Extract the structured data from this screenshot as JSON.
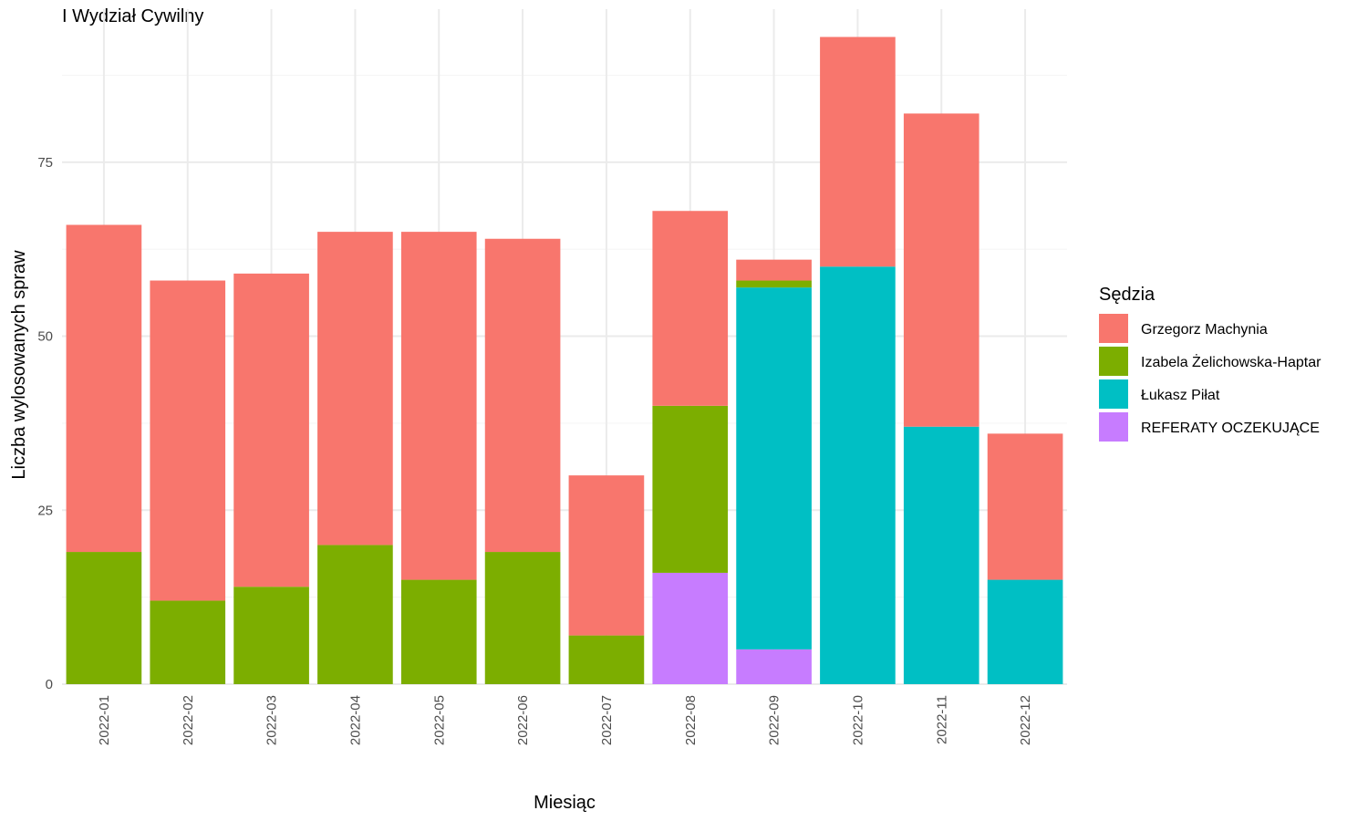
{
  "chart_data": {
    "type": "bar",
    "stacked": true,
    "title": "I Wydział Cywilny",
    "xlabel": "Miesiąc",
    "ylabel": "Liczba wylosowanych spraw",
    "ylim": [
      0,
      97
    ],
    "yticks": [
      0,
      25,
      50,
      75
    ],
    "grid": true,
    "legend_title": "Sędzia",
    "legend_position": "right",
    "categories": [
      "2022-01",
      "2022-02",
      "2022-03",
      "2022-04",
      "2022-05",
      "2022-06",
      "2022-07",
      "2022-08",
      "2022-09",
      "2022-10",
      "2022-11",
      "2022-12"
    ],
    "series": [
      {
        "name": "REFERATY OCZEKUJĄCE",
        "color": "#C77CFF",
        "values": [
          0,
          0,
          0,
          0,
          0,
          0,
          0,
          16,
          5,
          0,
          0,
          0
        ]
      },
      {
        "name": "Łukasz Piłat",
        "color": "#00BFC4",
        "values": [
          0,
          0,
          0,
          0,
          0,
          0,
          0,
          0,
          52,
          60,
          37,
          15
        ]
      },
      {
        "name": "Izabela Żelichowska-Haptar",
        "color": "#7CAE00",
        "values": [
          19,
          12,
          14,
          20,
          15,
          19,
          7,
          24,
          1,
          0,
          0,
          0
        ]
      },
      {
        "name": "Grzegorz Machynia",
        "color": "#F8766D",
        "values": [
          47,
          46,
          45,
          45,
          50,
          45,
          23,
          28,
          3,
          33,
          45,
          21
        ]
      }
    ],
    "legend_order": [
      "Grzegorz Machynia",
      "Izabela Żelichowska-Haptar",
      "Łukasz Piłat",
      "REFERATY OCZEKUJĄCE"
    ]
  }
}
